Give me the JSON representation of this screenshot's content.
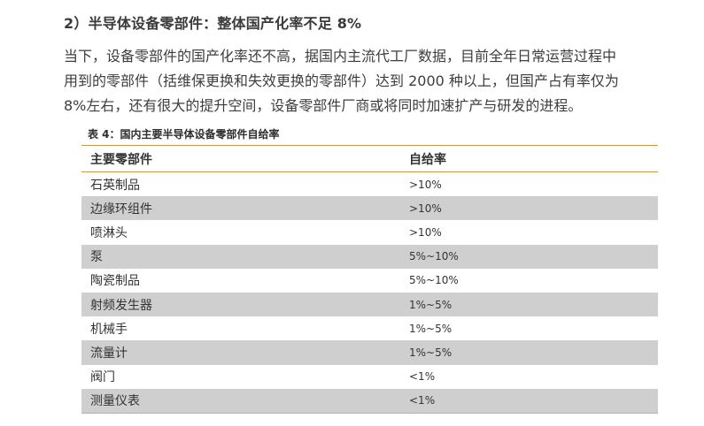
{
  "heading": "2）半导体设备零部件：整体国产化率不足 8%",
  "paragraph": {
    "lines": [
      "当下，设备零部件的国产化率还不高，据国内主流代工厂数据，目前全年日常运营过程中",
      "用到的零部件（括维保更换和失效更换的零部件）达到 2000 种以上，但国产占有率仅为",
      "8%左右，还有很大的提升空间，设备零部件厂商或将同时加速扩产与研发的进程。"
    ]
  },
  "table": {
    "caption": "表 4：国内主要半导体设备零部件自给率",
    "headers": [
      "主要零部件",
      "自给率"
    ],
    "rows": [
      [
        "石英制品",
        ">10%"
      ],
      [
        "边缘环组件",
        ">10%"
      ],
      [
        "喷淋头",
        ">10%"
      ],
      [
        "泵",
        "5%~10%"
      ],
      [
        "陶瓷制品",
        "5%~10%"
      ],
      [
        "射频发生器",
        "1%~5%"
      ],
      [
        "机械手",
        "1%~5%"
      ],
      [
        "流量计",
        "1%~5%"
      ],
      [
        "阀门",
        "<1%"
      ],
      [
        "测量仪表",
        "<1%"
      ]
    ]
  },
  "colors": {
    "rule": "#c49a45",
    "stripe": "#cfcfcf",
    "text": "#333333"
  }
}
